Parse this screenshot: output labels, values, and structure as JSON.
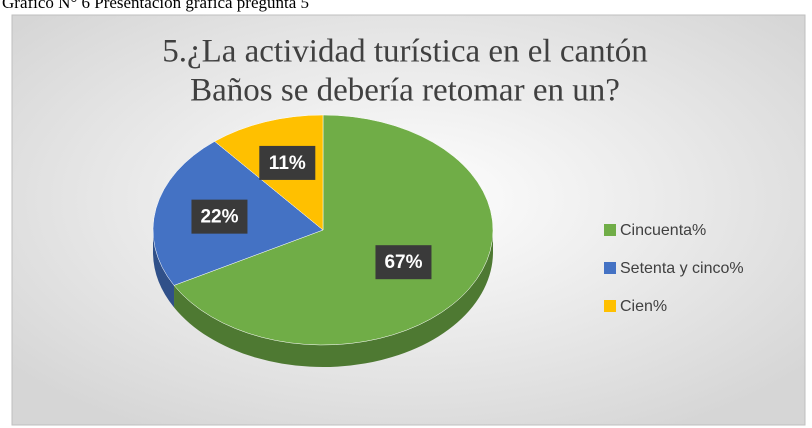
{
  "caption": "Gráfico N° 6 Presentación gráfica pregunta 5",
  "chart_data": {
    "type": "pie",
    "title": [
      "5.¿La actividad turística en el cantón",
      "Baños se debería retomar en un?"
    ],
    "categories": [
      "Cincuenta%",
      "Setenta y cinco%",
      "Cien%"
    ],
    "values": [
      67,
      22,
      11
    ],
    "value_labels": [
      "67%",
      "22%",
      "11%"
    ],
    "colors": [
      "#70ad47",
      "#4472c4",
      "#ffc000"
    ],
    "legend": "right"
  }
}
